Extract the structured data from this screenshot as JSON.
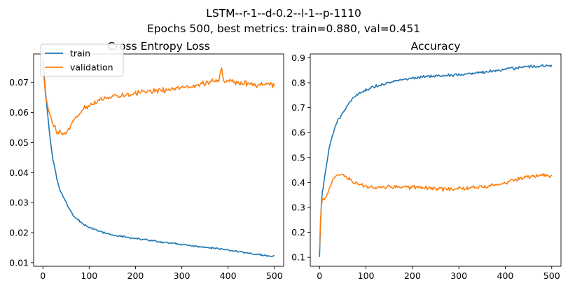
{
  "figure": {
    "title_line1": "LSTM--r-1--d-0.2--l-1--p-1110",
    "title_line2": "Epochs 500, best metrics: train=0.880, val=0.451"
  },
  "chart_data": [
    {
      "type": "line",
      "title": "Cross Entropy Loss",
      "xlabel": "",
      "ylabel": "",
      "xlim": [
        -20,
        520
      ],
      "ylim": [
        0.0088,
        0.0795
      ],
      "xticks": [
        0,
        100,
        200,
        300,
        400,
        500
      ],
      "xtick_labels": [
        "0",
        "100",
        "200",
        "300",
        "400",
        "500"
      ],
      "yticks": [
        0.01,
        0.02,
        0.03,
        0.04,
        0.05,
        0.06,
        0.07
      ],
      "ytick_labels": [
        "0.01",
        "0.02",
        "0.03",
        "0.04",
        "0.05",
        "0.06",
        "0.07"
      ],
      "grid": false,
      "legend": "top-left",
      "series": [
        {
          "name": "train",
          "color": "#1f77b4",
          "x": [
            0,
            5,
            10,
            15,
            20,
            25,
            30,
            35,
            40,
            50,
            60,
            70,
            80,
            90,
            100,
            120,
            140,
            160,
            180,
            200,
            220,
            250,
            280,
            300,
            330,
            360,
            380,
            400,
            420,
            440,
            460,
            480,
            500
          ],
          "y": [
            0.078,
            0.068,
            0.06,
            0.052,
            0.046,
            0.042,
            0.038,
            0.035,
            0.033,
            0.03,
            0.027,
            0.025,
            0.0238,
            0.0225,
            0.0218,
            0.0205,
            0.0197,
            0.019,
            0.0185,
            0.018,
            0.0176,
            0.017,
            0.0165,
            0.016,
            0.0155,
            0.015,
            0.0146,
            0.0142,
            0.0137,
            0.0132,
            0.0128,
            0.0124,
            0.0122
          ]
        },
        {
          "name": "validation",
          "color": "#ff7f0e",
          "x": [
            0,
            5,
            10,
            15,
            20,
            25,
            30,
            35,
            40,
            45,
            50,
            55,
            60,
            70,
            80,
            90,
            100,
            120,
            140,
            160,
            180,
            200,
            220,
            250,
            280,
            300,
            320,
            340,
            360,
            370,
            380,
            385,
            390,
            400,
            420,
            440,
            460,
            480,
            500
          ],
          "y": [
            0.076,
            0.066,
            0.062,
            0.059,
            0.057,
            0.0555,
            0.054,
            0.0535,
            0.0532,
            0.053,
            0.053,
            0.054,
            0.0555,
            0.058,
            0.06,
            0.0615,
            0.0625,
            0.064,
            0.065,
            0.0655,
            0.066,
            0.0665,
            0.067,
            0.0672,
            0.0678,
            0.068,
            0.0688,
            0.0695,
            0.07,
            0.0705,
            0.071,
            0.0755,
            0.071,
            0.0705,
            0.07,
            0.0695,
            0.069,
            0.0695,
            0.069
          ]
        }
      ]
    },
    {
      "type": "line",
      "title": "Accuracy",
      "xlabel": "",
      "ylabel": "",
      "xlim": [
        -20,
        520
      ],
      "ylim": [
        0.064,
        0.915
      ],
      "xticks": [
        0,
        100,
        200,
        300,
        400,
        500
      ],
      "xtick_labels": [
        "0",
        "100",
        "200",
        "300",
        "400",
        "500"
      ],
      "yticks": [
        0.1,
        0.2,
        0.3,
        0.4,
        0.5,
        0.6,
        0.7,
        0.8,
        0.9
      ],
      "ytick_labels": [
        "0.1",
        "0.2",
        "0.3",
        "0.4",
        "0.5",
        "0.6",
        "0.7",
        "0.8",
        "0.9"
      ],
      "grid": false,
      "series": [
        {
          "name": "train",
          "color": "#1f77b4",
          "x": [
            0,
            3,
            6,
            10,
            15,
            20,
            25,
            30,
            35,
            40,
            50,
            60,
            70,
            80,
            90,
            100,
            120,
            140,
            160,
            180,
            200,
            220,
            250,
            280,
            300,
            330,
            360,
            400,
            420,
            440,
            460,
            480,
            500
          ],
          "y": [
            0.1,
            0.3,
            0.36,
            0.41,
            0.47,
            0.53,
            0.57,
            0.6,
            0.63,
            0.65,
            0.68,
            0.71,
            0.735,
            0.75,
            0.76,
            0.77,
            0.785,
            0.795,
            0.805,
            0.812,
            0.818,
            0.822,
            0.827,
            0.83,
            0.833,
            0.838,
            0.844,
            0.853,
            0.857,
            0.862,
            0.865,
            0.867,
            0.868
          ]
        },
        {
          "name": "validation",
          "color": "#ff7f0e",
          "x": [
            0,
            3,
            6,
            10,
            15,
            20,
            25,
            30,
            35,
            40,
            50,
            60,
            70,
            80,
            90,
            100,
            120,
            140,
            160,
            180,
            200,
            220,
            250,
            280,
            300,
            330,
            360,
            400,
            420,
            440,
            460,
            480,
            500
          ],
          "y": [
            0.14,
            0.3,
            0.33,
            0.33,
            0.35,
            0.37,
            0.39,
            0.41,
            0.42,
            0.43,
            0.43,
            0.42,
            0.405,
            0.395,
            0.39,
            0.385,
            0.38,
            0.38,
            0.383,
            0.382,
            0.38,
            0.378,
            0.375,
            0.372,
            0.375,
            0.38,
            0.385,
            0.395,
            0.41,
            0.42,
            0.425,
            0.43,
            0.425
          ]
        }
      ]
    }
  ]
}
